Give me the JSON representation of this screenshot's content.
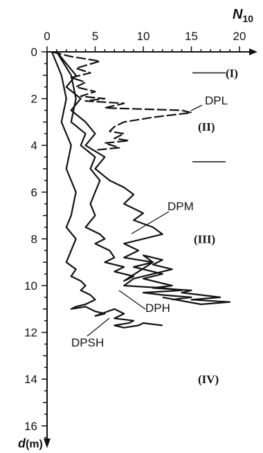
{
  "chart_data": {
    "type": "line",
    "orientation": "depth-profile",
    "x_axis": {
      "label": "N",
      "label_subscript": "10",
      "range": [
        0,
        21
      ],
      "ticks": [
        0,
        5,
        10,
        15,
        20
      ],
      "position": "top"
    },
    "y_axis": {
      "label": "d",
      "label_unit": "(m)",
      "range": [
        0,
        17.2
      ],
      "ticks": [
        0,
        2,
        4,
        6,
        8,
        10,
        12,
        14,
        16
      ],
      "inverted": true
    },
    "series": [
      {
        "name": "DPL",
        "style": "dashed",
        "x": [
          0.5,
          2.5,
          5.5,
          3,
          4.5,
          2.5,
          4,
          3,
          5,
          3.5,
          6,
          4,
          8,
          6,
          14,
          15,
          11,
          8,
          7,
          6.5,
          8,
          7,
          8.5,
          6,
          7.5,
          5
        ],
        "y": [
          0.0,
          0.2,
          0.4,
          0.7,
          0.9,
          1.1,
          1.3,
          1.5,
          1.7,
          1.9,
          2.0,
          2.1,
          2.2,
          2.4,
          2.5,
          2.6,
          2.8,
          3.0,
          3.2,
          3.4,
          3.5,
          3.7,
          3.8,
          3.9,
          4.1,
          4.2
        ]
      },
      {
        "name": "DPM",
        "style": "solid",
        "x": [
          1,
          2,
          3,
          2,
          3.5,
          2.5,
          4,
          5,
          4,
          6,
          5,
          6.5,
          8,
          9,
          8,
          10,
          9,
          11,
          12,
          10,
          8,
          9.5,
          8,
          11,
          9,
          12,
          10,
          13,
          11,
          15,
          14,
          16,
          18,
          15,
          19,
          16,
          12
        ],
        "y": [
          0.0,
          0.5,
          1.0,
          1.5,
          2.0,
          2.5,
          3.0,
          3.5,
          4.0,
          4.5,
          5.0,
          5.5,
          5.8,
          6.1,
          6.5,
          6.9,
          7.2,
          7.5,
          7.8,
          8.0,
          8.2,
          8.5,
          8.8,
          9.0,
          9.2,
          9.5,
          9.7,
          10.0,
          10.1,
          10.2,
          10.3,
          10.4,
          10.5,
          10.6,
          10.7,
          10.8,
          10.5
        ]
      },
      {
        "name": "DPH",
        "style": "solid",
        "x": [
          1,
          2.5,
          3,
          2.5,
          4,
          3.5,
          5,
          4.5,
          5.5,
          5,
          4.5,
          5,
          4,
          5.5,
          6,
          5,
          6.5,
          7,
          6,
          8,
          7,
          9,
          8,
          11,
          10,
          12,
          11,
          13,
          9,
          8,
          12,
          14,
          10,
          12,
          15,
          13
        ],
        "y": [
          0.0,
          1.0,
          2.0,
          3.0,
          3.5,
          4.0,
          4.5,
          5.0,
          5.5,
          6.0,
          6.5,
          7.0,
          7.5,
          7.8,
          8.0,
          8.2,
          8.5,
          8.8,
          9.0,
          9.2,
          9.4,
          9.6,
          9.8,
          9.0,
          8.7,
          8.9,
          9.1,
          9.3,
          9.7,
          10.0,
          10.1,
          10.2,
          10.3,
          10.4,
          10.5,
          10.6
        ]
      },
      {
        "name": "DPSH",
        "style": "solid",
        "x": [
          0.5,
          1.5,
          2,
          1.5,
          2.5,
          2,
          3,
          2.5,
          2,
          3,
          2.5,
          2,
          3,
          2.5,
          3.5,
          4,
          3.5,
          4.5,
          5,
          4,
          3,
          2.5,
          4,
          5,
          6,
          5,
          7,
          8,
          7,
          9,
          8.5,
          7,
          8,
          9.5,
          10,
          12
        ],
        "y": [
          0.0,
          1.0,
          2.0,
          3.0,
          4.0,
          5.0,
          6.0,
          7.0,
          7.5,
          8.0,
          8.5,
          9.0,
          9.3,
          9.6,
          9.8,
          10.0,
          10.2,
          10.4,
          10.6,
          10.8,
          10.9,
          11.0,
          10.9,
          11.1,
          11.2,
          11.3,
          11.0,
          11.2,
          11.4,
          11.5,
          11.6,
          11.7,
          11.8,
          11.7,
          11.6,
          11.7
        ]
      }
    ],
    "series_labels": [
      {
        "text": "DPL"
      },
      {
        "text": "DPM"
      },
      {
        "text": "DPH"
      },
      {
        "text": "DPSH"
      }
    ],
    "zones": [
      {
        "label": "(I)",
        "depth": 0.9
      },
      {
        "label": "(II)",
        "depth": 3.2
      },
      {
        "label": "(III)",
        "depth": 8.0
      },
      {
        "label": "(IV)",
        "depth": 14.0
      }
    ],
    "boundaries": [
      0.9,
      4.7
    ]
  }
}
